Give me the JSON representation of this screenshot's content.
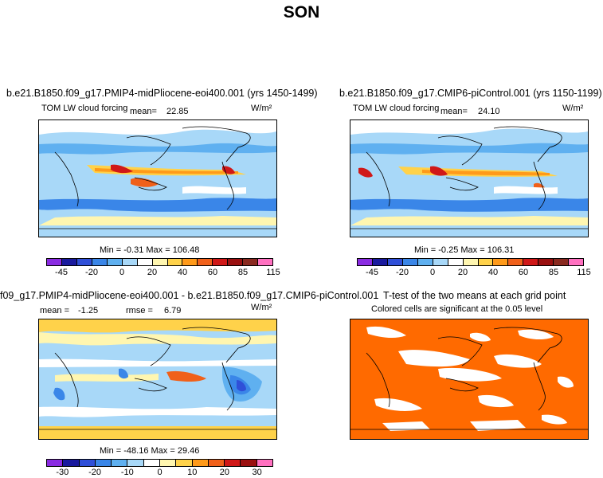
{
  "figure": {
    "season": "SON"
  },
  "panels": {
    "top_left": {
      "title": "b.e21.B1850.f09_g17.PMIP4-midPliocene-eoi400.001 (yrs 1450-1499)",
      "variable": "TOM LW cloud forcing",
      "mean_label": "mean=",
      "mean_value": "22.85",
      "units": "W/m²",
      "min_max": "Min =  -0.31  Max = 106.48"
    },
    "top_right": {
      "title": "b.e21.B1850.f09_g17.CMIP6-piControl.001 (yrs 1150-1199)",
      "variable": "TOM LW cloud forcing",
      "mean_label": "mean=",
      "mean_value": "24.10",
      "units": "W/m²",
      "min_max": "Min =  -0.25  Max = 106.31"
    },
    "bottom_left": {
      "title": "f09_g17.PMIP4-midPliocene-eoi400.001 - b.e21.B1850.f09_g17.CMIP6-piControl.001",
      "mean_label": "mean =",
      "mean_value": "-1.25",
      "rmse_label": "rmse =",
      "rmse_value": "6.79",
      "units": "W/m²",
      "min_max": "Min = -48.16  Max =  29.46"
    },
    "bottom_right": {
      "title": "T-test of the two means at each grid point",
      "subtitle": "Colored cells are significant at the 0.05 level"
    }
  },
  "colorbars": {
    "absolute": {
      "ticks": [
        "-45",
        "-20",
        "0",
        "20",
        "40",
        "60",
        "85",
        "115"
      ],
      "colors": [
        "#8a2be2",
        "#1a1a9e",
        "#2f4fd8",
        "#3a86e8",
        "#5fb0f0",
        "#a8d8f8",
        "#ffffff",
        "#fff6b0",
        "#ffd24a",
        "#ff9a1a",
        "#f0601a",
        "#d01818",
        "#9a1010",
        "#8a2a20",
        "#ff70c0"
      ]
    },
    "difference": {
      "ticks": [
        "-30",
        "-20",
        "-10",
        "0",
        "10",
        "20",
        "30"
      ],
      "colors": [
        "#8a2be2",
        "#1a1a9e",
        "#2f4fd8",
        "#3a86e8",
        "#5fb0f0",
        "#a8d8f8",
        "#ffffff",
        "#fff6b0",
        "#ffd24a",
        "#ff9a1a",
        "#f0601a",
        "#d01818",
        "#9a1010",
        "#ff70c0"
      ]
    }
  }
}
